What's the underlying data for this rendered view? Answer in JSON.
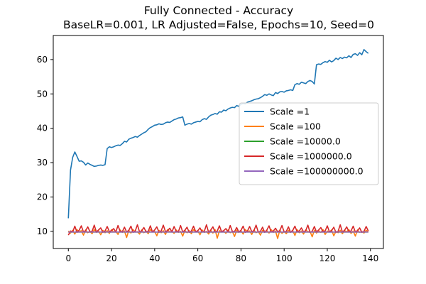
{
  "chart_data": {
    "type": "line",
    "title": "Fully Connected - Accuracy",
    "subtitle": "BaseLR=0.001, LR Adjusted=False, Epochs=10, Seed=0",
    "xlabel": "",
    "ylabel": "",
    "xlim": [
      -7,
      146
    ],
    "ylim": [
      5,
      67
    ],
    "xticks": [
      0,
      20,
      40,
      60,
      80,
      100,
      120,
      140
    ],
    "yticks": [
      10,
      20,
      30,
      40,
      50,
      60
    ],
    "grid": false,
    "legend_position": "center-right",
    "series": [
      {
        "name": "Scale =1",
        "color": "#1f77b4",
        "x": [
          0,
          1,
          2,
          3,
          4,
          5,
          6,
          7,
          8,
          9,
          10,
          11,
          12,
          13,
          14,
          15,
          16,
          17,
          18,
          19,
          20,
          21,
          22,
          23,
          24,
          25,
          26,
          27,
          28,
          29,
          30,
          31,
          32,
          33,
          34,
          35,
          36,
          37,
          38,
          39,
          40,
          41,
          42,
          43,
          44,
          45,
          46,
          47,
          48,
          49,
          50,
          51,
          52,
          53,
          54,
          55,
          56,
          57,
          58,
          59,
          60,
          61,
          62,
          63,
          64,
          65,
          66,
          67,
          68,
          69,
          70,
          71,
          72,
          73,
          74,
          75,
          76,
          77,
          78,
          79,
          80,
          81,
          82,
          83,
          84,
          85,
          86,
          87,
          88,
          89,
          90,
          91,
          92,
          93,
          94,
          95,
          96,
          97,
          98,
          99,
          100,
          101,
          102,
          103,
          104,
          105,
          106,
          107,
          108,
          109,
          110,
          111,
          112,
          113,
          114,
          115,
          116,
          117,
          118,
          119,
          120,
          121,
          122,
          123,
          124,
          125,
          126,
          127,
          128,
          129,
          130,
          131,
          132,
          133,
          134,
          135,
          136,
          137,
          138,
          139
        ],
        "values": [
          13.8,
          27.8,
          31.5,
          33.1,
          31.8,
          30.4,
          30.5,
          30.1,
          29.3,
          29.9,
          29.5,
          29.2,
          28.9,
          29.0,
          29.2,
          29.3,
          29.2,
          29.4,
          34.1,
          34.6,
          34.4,
          34.6,
          34.9,
          35.1,
          35.0,
          35.5,
          36.2,
          36.0,
          36.8,
          37.1,
          37.3,
          37.6,
          37.4,
          37.9,
          38.3,
          38.7,
          39.0,
          39.7,
          40.2,
          40.5,
          40.9,
          41.0,
          41.3,
          41.1,
          41.2,
          41.6,
          41.8,
          41.7,
          42.1,
          42.5,
          42.7,
          43.0,
          43.1,
          43.3,
          40.9,
          41.2,
          41.4,
          41.2,
          41.6,
          41.8,
          42.0,
          41.9,
          42.5,
          42.8,
          42.6,
          43.3,
          43.8,
          44.0,
          44.3,
          44.1,
          44.8,
          44.7,
          45.3,
          45.1,
          45.6,
          45.9,
          46.1,
          46.0,
          46.6,
          46.4,
          47.0,
          47.2,
          47.1,
          47.6,
          47.8,
          48.0,
          48.3,
          48.5,
          48.6,
          48.9,
          49.3,
          49.8,
          49.6,
          50.0,
          49.7,
          49.5,
          50.4,
          50.1,
          50.6,
          50.7,
          50.5,
          50.9,
          51.0,
          51.2,
          51.0,
          52.7,
          53.0,
          52.8,
          53.4,
          53.2,
          53.0,
          53.6,
          53.9,
          53.6,
          52.9,
          58.5,
          58.7,
          58.6,
          59.1,
          59.4,
          59.2,
          59.8,
          59.3,
          59.7,
          60.4,
          60.0,
          60.6,
          60.3,
          60.7,
          60.5,
          61.1,
          60.6,
          61.5,
          61.7,
          61.2,
          62.0,
          61.4,
          62.9,
          62.3,
          61.8
        ]
      },
      {
        "name": "Scale =100",
        "color": "#ff7f0e",
        "x": [
          0,
          1,
          2,
          3,
          4,
          5,
          6,
          7,
          8,
          9,
          10,
          11,
          12,
          13,
          14,
          15,
          16,
          17,
          18,
          19,
          20,
          21,
          22,
          23,
          24,
          25,
          26,
          27,
          28,
          29,
          30,
          31,
          32,
          33,
          34,
          35,
          36,
          37,
          38,
          39,
          40,
          41,
          42,
          43,
          44,
          45,
          46,
          47,
          48,
          49,
          50,
          51,
          52,
          53,
          54,
          55,
          56,
          57,
          58,
          59,
          60,
          61,
          62,
          63,
          64,
          65,
          66,
          67,
          68,
          69,
          70,
          71,
          72,
          73,
          74,
          75,
          76,
          77,
          78,
          79,
          80,
          81,
          82,
          83,
          84,
          85,
          86,
          87,
          88,
          89,
          90,
          91,
          92,
          93,
          94,
          95,
          96,
          97,
          98,
          99,
          100,
          101,
          102,
          103,
          104,
          105,
          106,
          107,
          108,
          109,
          110,
          111,
          112,
          113,
          114,
          115,
          116,
          117,
          118,
          119,
          120,
          121,
          122,
          123,
          124,
          125,
          126,
          127,
          128,
          129,
          130,
          131,
          132,
          133,
          134,
          135,
          136,
          137,
          138,
          139
        ],
        "values": [
          10.1,
          9.5,
          10.3,
          9.2,
          10.5,
          9.8,
          10.2,
          8.9,
          10.4,
          9.6,
          10.0,
          9.3,
          10.5,
          9.7,
          10.1,
          9.0,
          10.3,
          9.6,
          10.2,
          9.4,
          10.5,
          9.8,
          10.0,
          9.1,
          10.4,
          9.7,
          10.1,
          8.2,
          10.3,
          9.5,
          10.5,
          9.8,
          9.9,
          9.2,
          10.4,
          9.6,
          10.1,
          9.3,
          10.5,
          9.9,
          10.0,
          8.7,
          10.3,
          9.6,
          10.2,
          9.1,
          10.5,
          9.8,
          10.1,
          9.4,
          10.4,
          9.7,
          10.0,
          8.6,
          10.3,
          9.6,
          10.2,
          9.3,
          10.5,
          9.9,
          10.1,
          9.0,
          10.4,
          9.7,
          10.0,
          9.2,
          10.3,
          9.5,
          10.5,
          8.0,
          10.2,
          9.8,
          10.1,
          9.4,
          10.4,
          9.6,
          10.0,
          8.5,
          10.3,
          9.7,
          10.2,
          9.2,
          10.5,
          9.9,
          10.1,
          9.1,
          10.4,
          9.6,
          10.0,
          8.9,
          10.3,
          9.8,
          10.2,
          9.5,
          10.5,
          9.7,
          10.1,
          7.9,
          10.4,
          9.4,
          10.0,
          9.3,
          10.3,
          9.8,
          10.2,
          8.8,
          10.5,
          9.6,
          10.1,
          9.2,
          10.4,
          9.9,
          10.0,
          8.4,
          10.3,
          9.5,
          10.2,
          9.7,
          10.5,
          9.1,
          10.1,
          9.8,
          10.4,
          8.7,
          10.0,
          9.6,
          10.3,
          9.3,
          10.2,
          9.9,
          10.5,
          9.4,
          10.1,
          8.6,
          10.4,
          9.7,
          10.0,
          9.5,
          10.3,
          9.8
        ]
      },
      {
        "name": "Scale =10000.0",
        "color": "#2ca02c",
        "x": [
          0,
          139
        ],
        "values": [
          9.8,
          9.8
        ]
      },
      {
        "name": "Scale =1000000.0",
        "color": "#d62728",
        "x": [
          0,
          1,
          2,
          3,
          4,
          5,
          6,
          7,
          8,
          9,
          10,
          11,
          12,
          13,
          14,
          15,
          16,
          17,
          18,
          19,
          20,
          21,
          22,
          23,
          24,
          25,
          26,
          27,
          28,
          29,
          30,
          31,
          32,
          33,
          34,
          35,
          36,
          37,
          38,
          39,
          40,
          41,
          42,
          43,
          44,
          45,
          46,
          47,
          48,
          49,
          50,
          51,
          52,
          53,
          54,
          55,
          56,
          57,
          58,
          59,
          60,
          61,
          62,
          63,
          64,
          65,
          66,
          67,
          68,
          69,
          70,
          71,
          72,
          73,
          74,
          75,
          76,
          77,
          78,
          79,
          80,
          81,
          82,
          83,
          84,
          85,
          86,
          87,
          88,
          89,
          90,
          91,
          92,
          93,
          94,
          95,
          96,
          97,
          98,
          99,
          100,
          101,
          102,
          103,
          104,
          105,
          106,
          107,
          108,
          109,
          110,
          111,
          112,
          113,
          114,
          115,
          116,
          117,
          118,
          119,
          120,
          121,
          122,
          123,
          124,
          125,
          126,
          127,
          128,
          129,
          130,
          131,
          132,
          133,
          134,
          135,
          136,
          137,
          138,
          139
        ],
        "values": [
          8.9,
          10.1,
          9.8,
          11.5,
          9.7,
          10.3,
          11.6,
          9.8,
          10.2,
          11.3,
          9.9,
          10.0,
          11.8,
          9.8,
          10.4,
          11.0,
          9.7,
          10.1,
          11.4,
          9.9,
          10.2,
          10.8,
          9.8,
          11.7,
          10.0,
          9.9,
          11.2,
          9.8,
          10.3,
          11.5,
          9.7,
          10.1,
          11.9,
          9.8,
          10.2,
          11.1,
          9.9,
          10.0,
          11.6,
          9.8,
          10.4,
          11.3,
          9.7,
          10.1,
          11.8,
          9.9,
          10.2,
          10.9,
          9.8,
          11.4,
          10.0,
          9.9,
          11.7,
          9.8,
          10.3,
          11.2,
          9.7,
          10.1,
          11.5,
          9.9,
          10.2,
          11.0,
          9.8,
          10.0,
          11.9,
          9.7,
          10.4,
          11.3,
          9.8,
          10.1,
          11.6,
          9.9,
          10.2,
          10.8,
          9.8,
          11.7,
          10.0,
          9.9,
          11.1,
          9.8,
          10.3,
          11.5,
          9.7,
          10.1,
          11.4,
          9.9,
          10.2,
          11.8,
          9.8,
          10.0,
          11.2,
          9.7,
          10.4,
          11.6,
          9.8,
          10.1,
          10.9,
          9.9,
          10.2,
          11.7,
          9.8,
          10.0,
          11.3,
          9.7,
          10.3,
          11.5,
          9.9,
          10.1,
          11.0,
          9.8,
          10.2,
          11.8,
          9.7,
          10.0,
          11.4,
          9.8,
          10.4,
          11.1,
          9.9,
          10.1,
          11.6,
          9.8,
          10.2,
          11.2,
          9.7,
          10.0,
          11.9,
          9.8,
          10.3,
          11.3,
          9.9,
          10.1,
          11.5,
          9.8,
          10.2,
          11.0,
          9.7,
          10.0,
          11.4,
          10.1
        ]
      },
      {
        "name": "Scale =100000000.0",
        "color": "#9467bd",
        "x": [
          0,
          139
        ],
        "values": [
          9.8,
          9.8
        ]
      }
    ]
  }
}
